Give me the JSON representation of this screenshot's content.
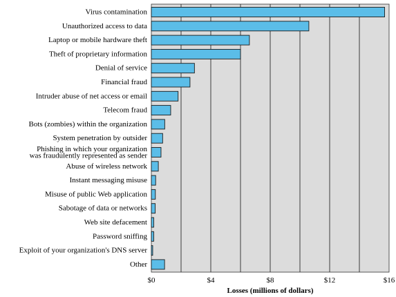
{
  "chart_data": {
    "type": "bar",
    "orientation": "horizontal",
    "categories": [
      "Virus contamination",
      "Unauthorized access to data",
      "Laptop or mobile hardware theft",
      "Theft of proprietary information",
      "Denial of service",
      "Financial fraud",
      "Intruder abuse of net access or email",
      "Telecom fraud",
      "Bots (zombies) within the organization",
      "System penetration by outsider",
      "Phishing in which your organization\nwas fraudulently represented as sender",
      "Abuse of wireless network",
      "Instant messaging misuse",
      "Misuse of public Web application",
      "Sabotage of data or networks",
      "Web site defacement",
      "Password sniffing",
      "Exploit of your organization's DNS server",
      "Other"
    ],
    "values": [
      15.7,
      10.6,
      6.6,
      6.0,
      2.9,
      2.6,
      1.8,
      1.3,
      0.9,
      0.76,
      0.65,
      0.47,
      0.29,
      0.27,
      0.26,
      0.16,
      0.16,
      0.09,
      0.89
    ],
    "xlabel": "Losses (millions of dollars)",
    "xlim": [
      0,
      16
    ],
    "xticks": [
      0,
      4,
      8,
      12,
      16
    ],
    "xtick_labels": [
      "$0",
      "$4",
      "$8",
      "$12",
      "$16"
    ],
    "grid": true,
    "colors": {
      "bar_fill": "#5bbde8",
      "bar_stroke": "#1a1a1a",
      "plot_background": "#dcdcdc",
      "gridline": "#2a2a2a"
    }
  }
}
